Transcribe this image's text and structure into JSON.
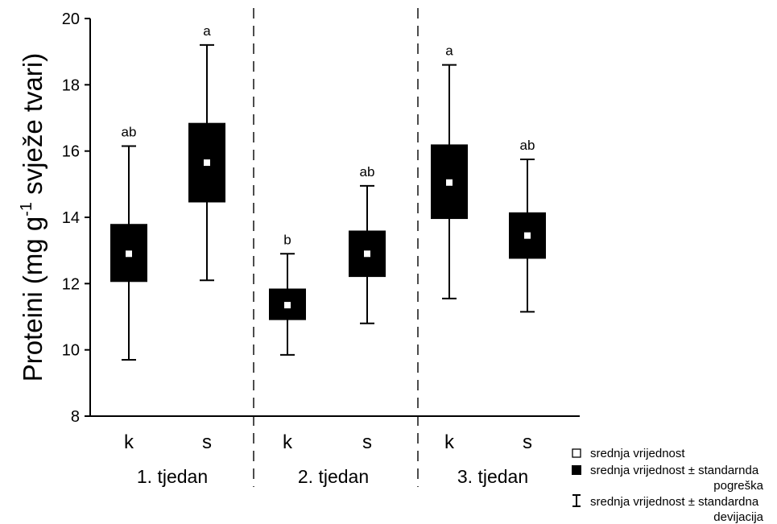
{
  "chart_data": {
    "type": "box",
    "ylabel": {
      "prefix": "Proteini (mg g",
      "superscript": "-1",
      "suffix": " svježe tvari)"
    },
    "ylim": [
      8,
      20
    ],
    "yticks": [
      "8",
      "10",
      "12",
      "14",
      "16",
      "18",
      "20"
    ],
    "groups": [
      {
        "label": "1. tjedan",
        "categories": [
          "k",
          "s"
        ]
      },
      {
        "label": "2. tjedan",
        "categories": [
          "k",
          "s"
        ]
      },
      {
        "label": "3. tjedan",
        "categories": [
          "k",
          "s"
        ]
      }
    ],
    "series": [
      {
        "category": "k",
        "group": "1. tjedan",
        "mean": 12.9,
        "se_low": 12.05,
        "se_high": 13.8,
        "sd_low": 9.7,
        "sd_high": 16.15,
        "significance": "ab"
      },
      {
        "category": "s",
        "group": "1. tjedan",
        "mean": 15.65,
        "se_low": 14.45,
        "se_high": 16.85,
        "sd_low": 12.1,
        "sd_high": 19.2,
        "significance": "a"
      },
      {
        "category": "k",
        "group": "2. tjedan",
        "mean": 11.35,
        "se_low": 10.9,
        "se_high": 11.85,
        "sd_low": 9.85,
        "sd_high": 12.9,
        "significance": "b"
      },
      {
        "category": "s",
        "group": "2. tjedan",
        "mean": 12.9,
        "se_low": 12.2,
        "se_high": 13.6,
        "sd_low": 10.8,
        "sd_high": 14.95,
        "significance": "ab"
      },
      {
        "category": "k",
        "group": "3. tjedan",
        "mean": 15.05,
        "se_low": 13.95,
        "se_high": 16.2,
        "sd_low": 11.55,
        "sd_high": 18.6,
        "significance": "a"
      },
      {
        "category": "s",
        "group": "3. tjedan",
        "mean": 13.45,
        "se_low": 12.75,
        "se_high": 14.15,
        "sd_low": 11.15,
        "sd_high": 15.75,
        "significance": "ab"
      }
    ],
    "legend": {
      "placement": "bottom-right",
      "entries": [
        {
          "symbol": "open-square",
          "lines": [
            "srednja vrijednost"
          ]
        },
        {
          "symbol": "filled-box",
          "lines": [
            "srednja vrijednost ± standarnda",
            "pogreška"
          ]
        },
        {
          "symbol": "whisker",
          "lines": [
            "srednja vrijednost ± standardna",
            "devijacija"
          ]
        }
      ]
    },
    "group_separators": "dashed",
    "grid": false,
    "colors": {
      "box": "#000000",
      "mean_marker": "#ffffff",
      "axis": "#000000"
    }
  }
}
